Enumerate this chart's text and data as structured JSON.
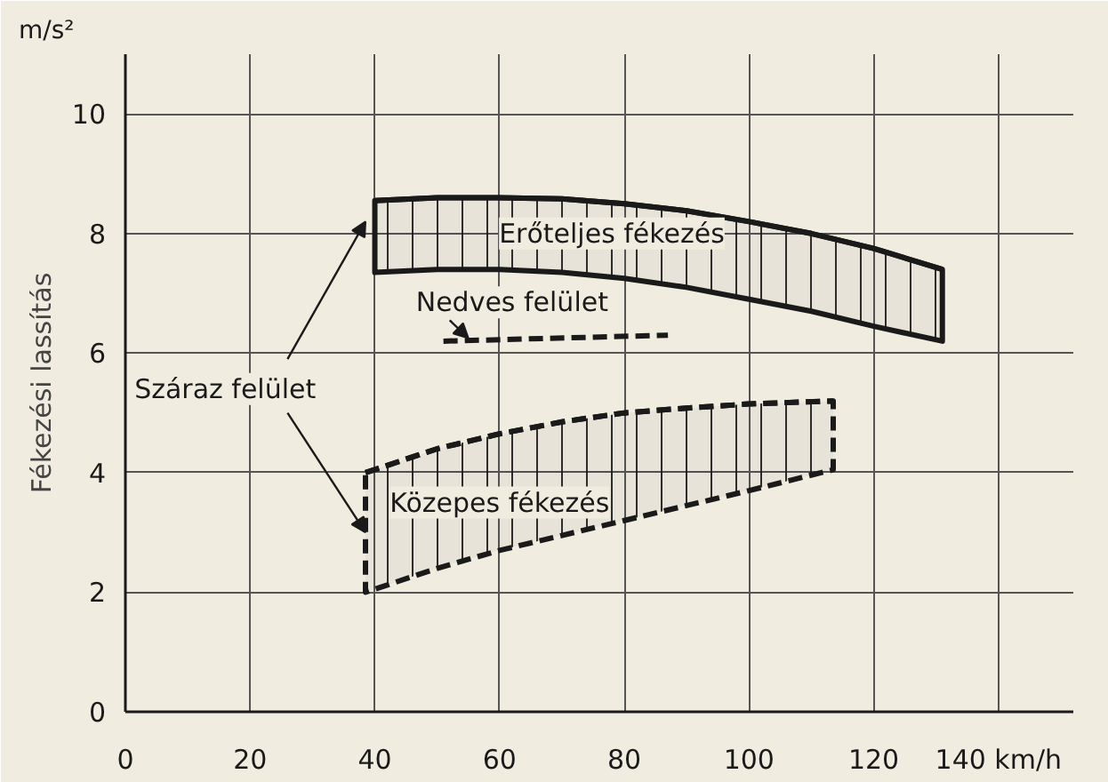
{
  "chart_data": {
    "type": "line",
    "ylabel": "Fékezési lassítás",
    "xlim": [
      0,
      152
    ],
    "ylim": [
      0,
      11
    ],
    "xticks": [
      0,
      20,
      40,
      60,
      80,
      100,
      120,
      {
        "value": 140,
        "label": "140 km/h"
      }
    ],
    "yticks": [
      0,
      2,
      4,
      6,
      8,
      10
    ],
    "grid": true,
    "series": [
      {
        "color": "#1a1a1a",
        "line_style": "solid",
        "x": [
          40,
          50,
          60,
          70,
          80,
          90,
          100,
          110,
          120,
          131
        ],
        "values": [
          8.55,
          8.6,
          8.6,
          8.58,
          8.5,
          8.38,
          8.2,
          8.0,
          7.75,
          7.4
        ],
        "upper": [
          8.55,
          8.6,
          8.6,
          8.58,
          8.5,
          8.38,
          8.2,
          8.0,
          7.75,
          7.4
        ],
        "lower": [
          7.35,
          7.4,
          7.4,
          7.35,
          7.25,
          7.1,
          6.9,
          6.7,
          6.45,
          6.2
        ]
      },
      {
        "color": "#1a1a1a",
        "line_style": "dashed",
        "x": [
          51,
          87
        ],
        "values": [
          6.2,
          6.3
        ]
      },
      {
        "color": "#1a1a1a",
        "line_style": "dashed",
        "x": [
          38.5,
          50,
          60,
          70,
          80,
          90,
          100,
          113.5
        ],
        "values": [
          4.0,
          4.4,
          4.65,
          4.85,
          5.0,
          5.08,
          5.15,
          5.2
        ],
        "upper": [
          4.0,
          4.4,
          4.65,
          4.85,
          5.0,
          5.08,
          5.15,
          5.2
        ],
        "lower": [
          2.0,
          2.4,
          2.7,
          2.95,
          3.2,
          3.45,
          3.7,
          4.05
        ]
      }
    ],
    "annotations": [
      "m/s²",
      "Erőteljes fékezés",
      {
        "text": "Nedves felület",
        "x": 55,
        "y": 6.25
      },
      {
        "text": "Száraz felület",
        "x": 38.5,
        "y": 3.0
      },
      "Közepes fékezés"
    ]
  }
}
